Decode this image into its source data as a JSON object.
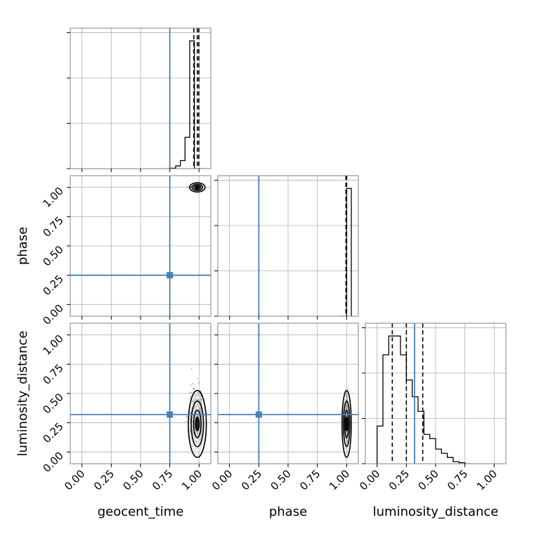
{
  "chart_data": {
    "type": "corner",
    "parameters": [
      "geocent_time",
      "phase",
      "luminosity_distance"
    ],
    "axis_labels": {
      "x": [
        "geocent_time",
        "phase",
        "luminosity_distance"
      ],
      "y": [
        "phase",
        "luminosity_distance"
      ]
    },
    "tick_values": [
      0.0,
      0.25,
      0.5,
      0.75,
      1.0
    ],
    "tick_labels": [
      "0.00",
      "0.25",
      "0.50",
      "0.75",
      "1.00"
    ],
    "xlim": [
      -0.1,
      1.1
    ],
    "grid": true,
    "colors": {
      "truth": "#4682b4",
      "hist": "#000000",
      "grid": "#b0b0b0",
      "scatter": "#606060"
    },
    "truths": {
      "geocent_time": 0.75,
      "phase": 0.25,
      "luminosity_distance": 0.32
    },
    "histograms": {
      "geocent_time": {
        "bin_edges": [
          0.72,
          0.76,
          0.8,
          0.84,
          0.88,
          0.92,
          0.96,
          1.0,
          1.04
        ],
        "counts": [
          0,
          1,
          6,
          18,
          70,
          285,
          0,
          0
        ],
        "quantiles": [
          0.955,
          0.985,
          0.998
        ]
      },
      "phase": {
        "bin_edges": [
          0.96,
          1.0,
          1.04
        ],
        "counts": [
          0,
          100
        ],
        "quantiles": [
          0.994,
          0.998,
          1.0
        ]
      },
      "luminosity_distance": {
        "bin_edges": [
          0.0,
          0.05,
          0.1,
          0.15,
          0.2,
          0.25,
          0.3,
          0.35,
          0.4,
          0.45,
          0.5,
          0.55,
          0.6,
          0.65,
          0.7,
          0.75,
          0.8
        ],
        "counts": [
          18,
          52,
          61,
          61,
          52,
          40,
          32,
          25,
          14,
          12,
          7,
          5,
          3,
          1,
          0.5,
          0
        ],
        "quantiles": [
          0.13,
          0.25,
          0.39
        ]
      }
    },
    "scatter": {
      "phase_vs_geocent_time": {
        "x_center": 0.985,
        "x_spread": 0.03,
        "y_center": 1.0,
        "y_spread": 0.005,
        "n": 280
      },
      "luminosity_distance_vs_geocent_time": {
        "x_center": 0.985,
        "x_spread": 0.035,
        "y_center": 0.24,
        "y_spread": 0.13,
        "n": 380
      },
      "luminosity_distance_vs_phase": {
        "x_center": 1.0,
        "x_spread": 0.006,
        "y_center": 0.24,
        "y_spread": 0.13,
        "n": 320
      }
    }
  }
}
